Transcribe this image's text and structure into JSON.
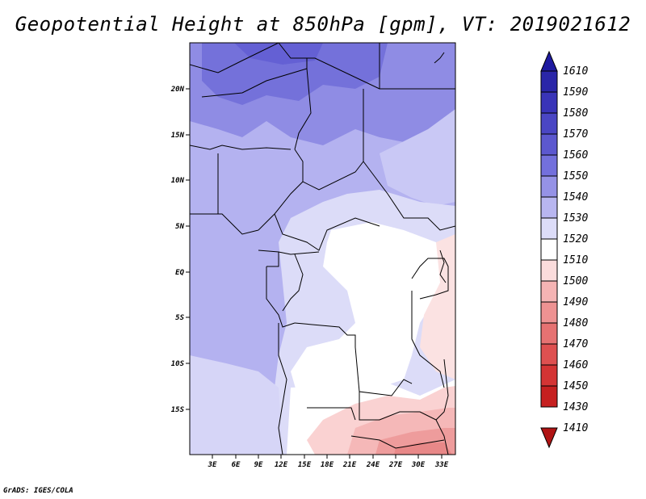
{
  "title": "Geopotential Height at 850hPa [gpm], VT: 2019021612",
  "footer": "GrADS: IGES/COLA",
  "map": {
    "lat_labels": [
      "20N",
      "15N",
      "10N",
      "5N",
      "EQ",
      "5S",
      "10S",
      "15S"
    ],
    "lon_labels": [
      "3E",
      "6E",
      "9E",
      "12E",
      "15E",
      "18E",
      "21E",
      "24E",
      "27E",
      "30E",
      "33E"
    ]
  },
  "colorbar": {
    "levels": [
      "1610",
      "1590",
      "1580",
      "1570",
      "1560",
      "1550",
      "1540",
      "1530",
      "1520",
      "1510",
      "1500",
      "1490",
      "1480",
      "1470",
      "1460",
      "1450",
      "1430",
      "1410"
    ],
    "colors": [
      "#1e1aa0",
      "#2a26a8",
      "#3934b8",
      "#4a46c4",
      "#5c58cf",
      "#7370dc",
      "#9592e6",
      "#b8b6f0",
      "#dcdcf8",
      "#ffffff",
      "#fbdcdc",
      "#f5b4b4",
      "#ee9292",
      "#e67272",
      "#de5050",
      "#d43434",
      "#c62020",
      "#b01414"
    ]
  }
}
